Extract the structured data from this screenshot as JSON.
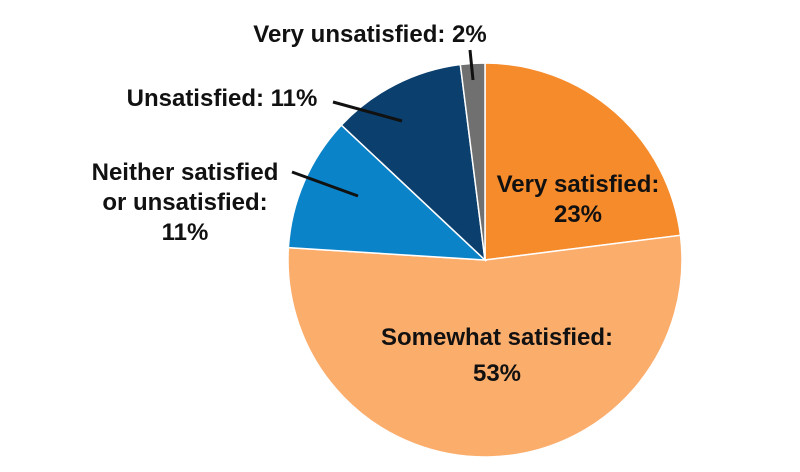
{
  "chart_data": {
    "type": "pie",
    "slices": [
      {
        "name": "Very satisfied",
        "value": 23,
        "color": "#f68b2c",
        "label": [
          "Very satisfied:",
          "23%"
        ]
      },
      {
        "name": "Somewhat satisfied",
        "value": 53,
        "color": "#fbad6c",
        "label": [
          "Somewhat satisfied:",
          "53%"
        ]
      },
      {
        "name": "Neither satisfied or unsatisfied",
        "value": 11,
        "color": "#0b83c9",
        "label": [
          "Neither satisfied",
          "or unsatisfied:",
          "11%"
        ]
      },
      {
        "name": "Unsatisfied",
        "value": 11,
        "color": "#0b3f6e",
        "label": [
          "Unsatisfied: 11%"
        ]
      },
      {
        "name": "Very unsatisfied",
        "value": 2,
        "color": "#707070",
        "label": [
          "Very unsatisfied: 2%"
        ]
      }
    ]
  }
}
